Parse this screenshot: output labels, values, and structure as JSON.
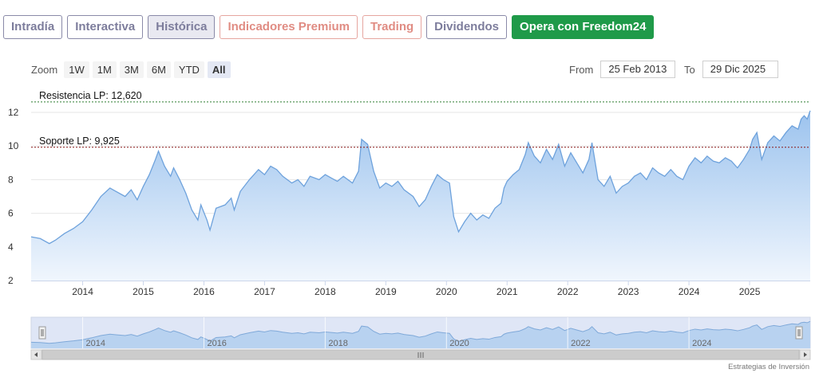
{
  "tabs": [
    {
      "label": "Intradía",
      "state": "normal"
    },
    {
      "label": "Interactiva",
      "state": "normal"
    },
    {
      "label": "Histórica",
      "state": "active"
    },
    {
      "label": "Indicadores Premium",
      "state": "premium"
    },
    {
      "label": "Trading",
      "state": "premium"
    },
    {
      "label": "Dividendos",
      "state": "normal"
    },
    {
      "label": "Opera con Freedom24",
      "state": "cta"
    }
  ],
  "zoom": {
    "label": "Zoom",
    "buttons": [
      "1W",
      "1M",
      "3M",
      "6M",
      "YTD",
      "All"
    ],
    "active": "All"
  },
  "range": {
    "from_label": "From",
    "from_value": "25 Feb 2013",
    "to_label": "To",
    "to_value": "29 Dic 2025"
  },
  "credit": "Estrategias de Inversión",
  "colors": {
    "line": "#6ea2dc",
    "fill_top": "#9cc3ee",
    "fill_bottom": "#f0f6fd",
    "resistance": "#2e7d32",
    "support": "#8b1a1a",
    "navigator_fill": "#dfe6f6",
    "cta": "#1f9a49"
  },
  "chart_data": {
    "type": "area",
    "y_ticks": [
      2,
      4,
      6,
      8,
      10,
      12
    ],
    "ylim": [
      2,
      12.9
    ],
    "xlim": [
      2013.15,
      2026.0
    ],
    "x_tick_labels": [
      "2014",
      "2015",
      "2016",
      "2017",
      "2018",
      "2019",
      "2020",
      "2021",
      "2022",
      "2023",
      "2024",
      "2025"
    ],
    "navigator_labels": [
      "2014",
      "2016",
      "2018",
      "2020",
      "2022",
      "2024"
    ],
    "grid": true,
    "annotations": [
      {
        "label": "Resistencia LP: 12,620",
        "value": 12.62,
        "style": "dashed-green"
      },
      {
        "label": "Soporte LP: 9,925",
        "value": 9.925,
        "style": "dashed-red"
      }
    ],
    "series": [
      {
        "points": [
          [
            2013.15,
            4.6
          ],
          [
            2013.3,
            4.5
          ],
          [
            2013.45,
            4.2
          ],
          [
            2013.55,
            4.4
          ],
          [
            2013.7,
            4.8
          ],
          [
            2013.85,
            5.1
          ],
          [
            2014.0,
            5.5
          ],
          [
            2014.15,
            6.2
          ],
          [
            2014.3,
            7.0
          ],
          [
            2014.45,
            7.5
          ],
          [
            2014.55,
            7.3
          ],
          [
            2014.7,
            7.0
          ],
          [
            2014.8,
            7.4
          ],
          [
            2014.9,
            6.8
          ],
          [
            2015.0,
            7.6
          ],
          [
            2015.1,
            8.3
          ],
          [
            2015.2,
            9.2
          ],
          [
            2015.25,
            9.7
          ],
          [
            2015.35,
            8.8
          ],
          [
            2015.45,
            8.2
          ],
          [
            2015.5,
            8.7
          ],
          [
            2015.6,
            8.0
          ],
          [
            2015.7,
            7.2
          ],
          [
            2015.8,
            6.2
          ],
          [
            2015.9,
            5.6
          ],
          [
            2015.95,
            6.5
          ],
          [
            2016.05,
            5.6
          ],
          [
            2016.1,
            5.0
          ],
          [
            2016.2,
            6.3
          ],
          [
            2016.35,
            6.5
          ],
          [
            2016.45,
            6.9
          ],
          [
            2016.5,
            6.2
          ],
          [
            2016.6,
            7.3
          ],
          [
            2016.75,
            8.0
          ],
          [
            2016.9,
            8.6
          ],
          [
            2017.0,
            8.3
          ],
          [
            2017.1,
            8.8
          ],
          [
            2017.2,
            8.6
          ],
          [
            2017.3,
            8.2
          ],
          [
            2017.45,
            7.8
          ],
          [
            2017.55,
            8.0
          ],
          [
            2017.65,
            7.6
          ],
          [
            2017.75,
            8.2
          ],
          [
            2017.9,
            8.0
          ],
          [
            2018.0,
            8.3
          ],
          [
            2018.1,
            8.1
          ],
          [
            2018.2,
            7.9
          ],
          [
            2018.3,
            8.2
          ],
          [
            2018.45,
            7.8
          ],
          [
            2018.55,
            8.5
          ],
          [
            2018.6,
            10.4
          ],
          [
            2018.7,
            10.1
          ],
          [
            2018.8,
            8.5
          ],
          [
            2018.9,
            7.5
          ],
          [
            2019.0,
            7.8
          ],
          [
            2019.1,
            7.6
          ],
          [
            2019.2,
            7.9
          ],
          [
            2019.3,
            7.4
          ],
          [
            2019.45,
            7.0
          ],
          [
            2019.55,
            6.4
          ],
          [
            2019.65,
            6.8
          ],
          [
            2019.75,
            7.6
          ],
          [
            2019.85,
            8.3
          ],
          [
            2019.95,
            8.0
          ],
          [
            2020.05,
            7.8
          ],
          [
            2020.12,
            5.8
          ],
          [
            2020.2,
            4.9
          ],
          [
            2020.3,
            5.5
          ],
          [
            2020.4,
            6.0
          ],
          [
            2020.5,
            5.6
          ],
          [
            2020.6,
            5.9
          ],
          [
            2020.7,
            5.7
          ],
          [
            2020.8,
            6.3
          ],
          [
            2020.9,
            6.6
          ],
          [
            2020.95,
            7.5
          ],
          [
            2021.0,
            7.9
          ],
          [
            2021.1,
            8.3
          ],
          [
            2021.2,
            8.6
          ],
          [
            2021.3,
            9.5
          ],
          [
            2021.35,
            10.2
          ],
          [
            2021.45,
            9.4
          ],
          [
            2021.55,
            9.0
          ],
          [
            2021.65,
            9.8
          ],
          [
            2021.75,
            9.2
          ],
          [
            2021.85,
            10.1
          ],
          [
            2021.95,
            8.8
          ],
          [
            2022.05,
            9.6
          ],
          [
            2022.15,
            9.0
          ],
          [
            2022.25,
            8.4
          ],
          [
            2022.35,
            9.2
          ],
          [
            2022.4,
            10.2
          ],
          [
            2022.5,
            8.0
          ],
          [
            2022.6,
            7.6
          ],
          [
            2022.7,
            8.2
          ],
          [
            2022.8,
            7.2
          ],
          [
            2022.9,
            7.6
          ],
          [
            2023.0,
            7.8
          ],
          [
            2023.1,
            8.2
          ],
          [
            2023.2,
            8.4
          ],
          [
            2023.3,
            8.0
          ],
          [
            2023.4,
            8.7
          ],
          [
            2023.5,
            8.4
          ],
          [
            2023.6,
            8.2
          ],
          [
            2023.7,
            8.6
          ],
          [
            2023.8,
            8.2
          ],
          [
            2023.9,
            8.0
          ],
          [
            2024.0,
            8.8
          ],
          [
            2024.1,
            9.3
          ],
          [
            2024.2,
            9.0
          ],
          [
            2024.3,
            9.4
          ],
          [
            2024.4,
            9.1
          ],
          [
            2024.5,
            9.0
          ],
          [
            2024.6,
            9.3
          ],
          [
            2024.7,
            9.1
          ],
          [
            2024.8,
            8.7
          ],
          [
            2024.9,
            9.2
          ],
          [
            2025.0,
            9.8
          ],
          [
            2025.05,
            10.4
          ],
          [
            2025.12,
            10.8
          ],
          [
            2025.2,
            9.2
          ],
          [
            2025.3,
            10.2
          ],
          [
            2025.4,
            10.6
          ],
          [
            2025.5,
            10.3
          ],
          [
            2025.6,
            10.8
          ],
          [
            2025.7,
            11.2
          ],
          [
            2025.8,
            11.0
          ],
          [
            2025.85,
            11.6
          ],
          [
            2025.9,
            11.8
          ],
          [
            2025.95,
            11.6
          ],
          [
            2026.0,
            12.1
          ]
        ]
      }
    ]
  }
}
